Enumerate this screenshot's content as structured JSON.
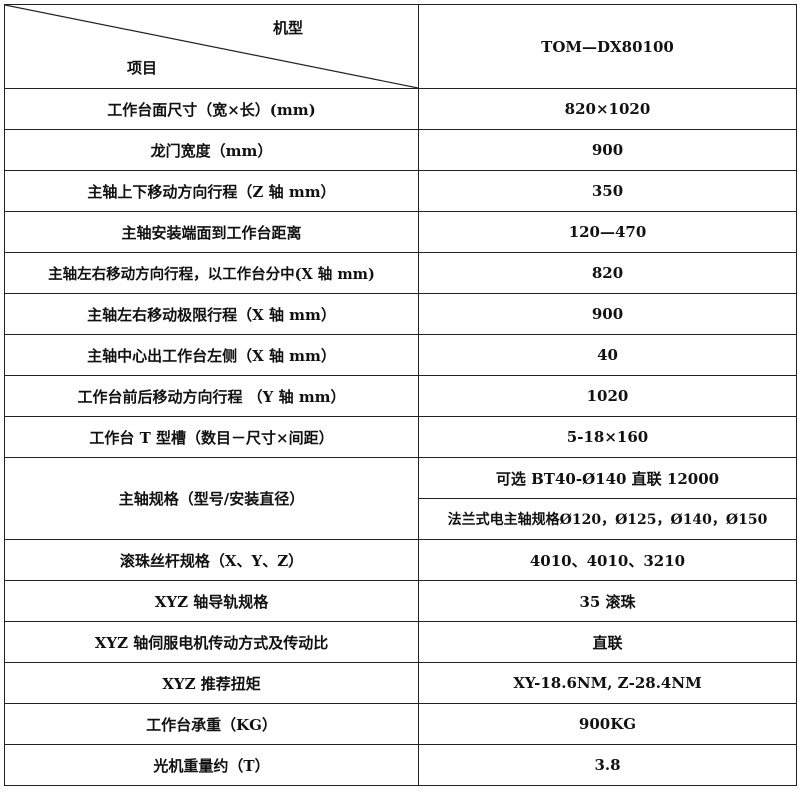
{
  "header": {
    "model_label": "机型",
    "item_label": "项目",
    "model_value": "TOM—DX80100"
  },
  "rows": [
    {
      "item": "工作台面尺寸（宽×长）(mm)",
      "value": "820×1020"
    },
    {
      "item": "龙门宽度（mm）",
      "value": "900"
    },
    {
      "item": "主轴上下移动方向行程（Z 轴 mm）",
      "value": "350"
    },
    {
      "item": "主轴安装端面到工作台距离",
      "value": "120—470"
    },
    {
      "item": "主轴左右移动方向行程，以工作台分中(X 轴 mm)",
      "value": "820"
    },
    {
      "item": "主轴左右移动极限行程（X 轴 mm）",
      "value": "900"
    },
    {
      "item": "主轴中心出工作台左侧（X 轴 mm）",
      "value": "40"
    },
    {
      "item": "工作台前后移动方向行程  （Y 轴 mm）",
      "value": "1020"
    },
    {
      "item": "工作台 T 型槽（数目－尺寸×间距）",
      "value": "5-18×160"
    }
  ],
  "spindle": {
    "item": "主轴规格（型号/安装直径）",
    "value1": "可选 BT40-Ø140 直联 12000",
    "value2": "法兰式电主轴规格Ø120，Ø125，Ø140，Ø150"
  },
  "rows2": [
    {
      "item": "滚珠丝杆规格（X、Y、Z）",
      "value": "4010、4010、3210"
    },
    {
      "item": "XYZ 轴导轨规格",
      "value": "35 滚珠"
    },
    {
      "item": "XYZ 轴伺服电机传动方式及传动比",
      "value": "直联"
    },
    {
      "item": "XYZ 推荐扭矩",
      "value": "XY-18.6NM, Z-28.4NM"
    },
    {
      "item": "工作台承重（KG）",
      "value": "900KG"
    },
    {
      "item": "光机重量约（T）",
      "value": "3.8"
    }
  ]
}
